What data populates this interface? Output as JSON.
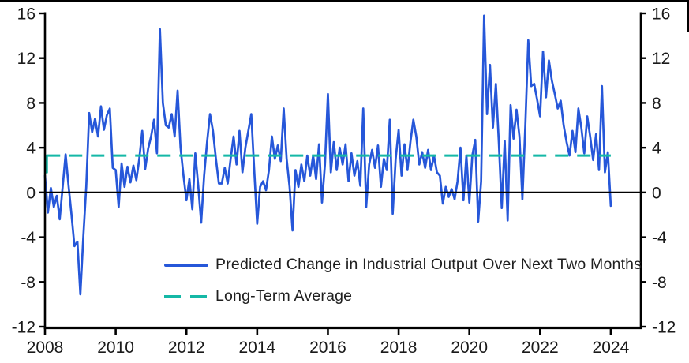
{
  "chart_data": {
    "type": "line",
    "title": "",
    "xlabel": "",
    "ylabel": "",
    "grid": false,
    "background": "#ffffff",
    "axis_color": "#000000",
    "tick_label_color": "#1a1a1a",
    "x_axis": {
      "range": [
        2008,
        2024.85
      ],
      "tick_years": [
        2008,
        2010,
        2012,
        2014,
        2016,
        2018,
        2020,
        2022,
        2024
      ]
    },
    "y_axis": {
      "range": [
        -12,
        16
      ],
      "ticks": [
        16,
        12,
        8,
        4,
        0,
        -4,
        -8,
        -12
      ],
      "mirrored_right": true
    },
    "zero_line": 0,
    "legend": {
      "position": "inside-lower-center"
    },
    "series": [
      {
        "name": "Predicted Change in Industrial Output Over Next Two Months",
        "type": "line",
        "style": "solid",
        "color": "#2657d9",
        "width": 2.7,
        "start_year": 2008,
        "points_per_year": 12,
        "values": [
          1.5,
          -1.8,
          0.4,
          -1.3,
          -0.3,
          -2.4,
          0.5,
          3.4,
          0.6,
          -2.0,
          -4.8,
          -4.4,
          -9.1,
          -4.0,
          0.5,
          7.1,
          5.4,
          6.6,
          5.0,
          7.7,
          5.6,
          6.9,
          7.5,
          2.2,
          2.0,
          -1.3,
          2.6,
          0.5,
          2.3,
          0.9,
          2.4,
          1.1,
          3.0,
          5.5,
          2.1,
          3.9,
          5.0,
          6.5,
          3.5,
          14.6,
          8.0,
          6.0,
          5.8,
          7.0,
          5.0,
          9.1,
          4.0,
          1.5,
          -0.7,
          1.2,
          -1.5,
          3.5,
          0.6,
          -2.7,
          1.5,
          4.5,
          7.0,
          5.5,
          3.0,
          0.8,
          0.8,
          2.2,
          0.8,
          3.0,
          5.0,
          2.5,
          5.5,
          1.8,
          4.0,
          5.5,
          7.0,
          2.0,
          -2.8,
          0.5,
          1.0,
          0.2,
          2.0,
          5.0,
          3.0,
          4.2,
          2.8,
          7.5,
          3.0,
          0.5,
          -3.4,
          2.0,
          0.5,
          2.5,
          1.0,
          3.3,
          1.5,
          3.3,
          1.2,
          4.3,
          -0.9,
          2.5,
          8.8,
          1.8,
          4.5,
          2.0,
          4.0,
          2.5,
          4.3,
          1.0,
          3.5,
          1.5,
          2.8,
          0.6,
          7.5,
          -1.3,
          2.5,
          3.8,
          2.2,
          4.2,
          0.5,
          3.0,
          2.0,
          6.5,
          -1.9,
          3.0,
          5.6,
          1.5,
          4.3,
          2.0,
          4.5,
          6.5,
          5.0,
          2.5,
          3.6,
          2.2,
          3.8,
          2.0,
          3.3,
          1.8,
          1.5,
          -1.0,
          0.5,
          -0.4,
          0.3,
          -0.6,
          1.0,
          4.0,
          -0.7,
          3.3,
          -0.9,
          3.3,
          4.7,
          -2.6,
          1.0,
          15.8,
          7.0,
          11.4,
          5.8,
          9.7,
          4.5,
          -1.4,
          4.6,
          -2.5,
          7.8,
          4.8,
          7.4,
          5.0,
          -0.6,
          6.0,
          13.6,
          9.5,
          9.7,
          8.3,
          6.8,
          12.6,
          8.5,
          11.8,
          10.0,
          8.8,
          7.5,
          8.2,
          6.0,
          4.5,
          3.3,
          5.5,
          3.6,
          7.5,
          5.8,
          3.5,
          6.8,
          5.0,
          2.9,
          5.2,
          2.0,
          9.5,
          1.8,
          3.6,
          -1.2
        ]
      },
      {
        "name": "Long-Term Average",
        "type": "hline",
        "style": "dashed",
        "color": "#15b8a6",
        "width": 3,
        "value": 3.3,
        "x_start": 2008.05,
        "x_end": 2024.0,
        "start_tail_from": 1.8
      }
    ]
  }
}
